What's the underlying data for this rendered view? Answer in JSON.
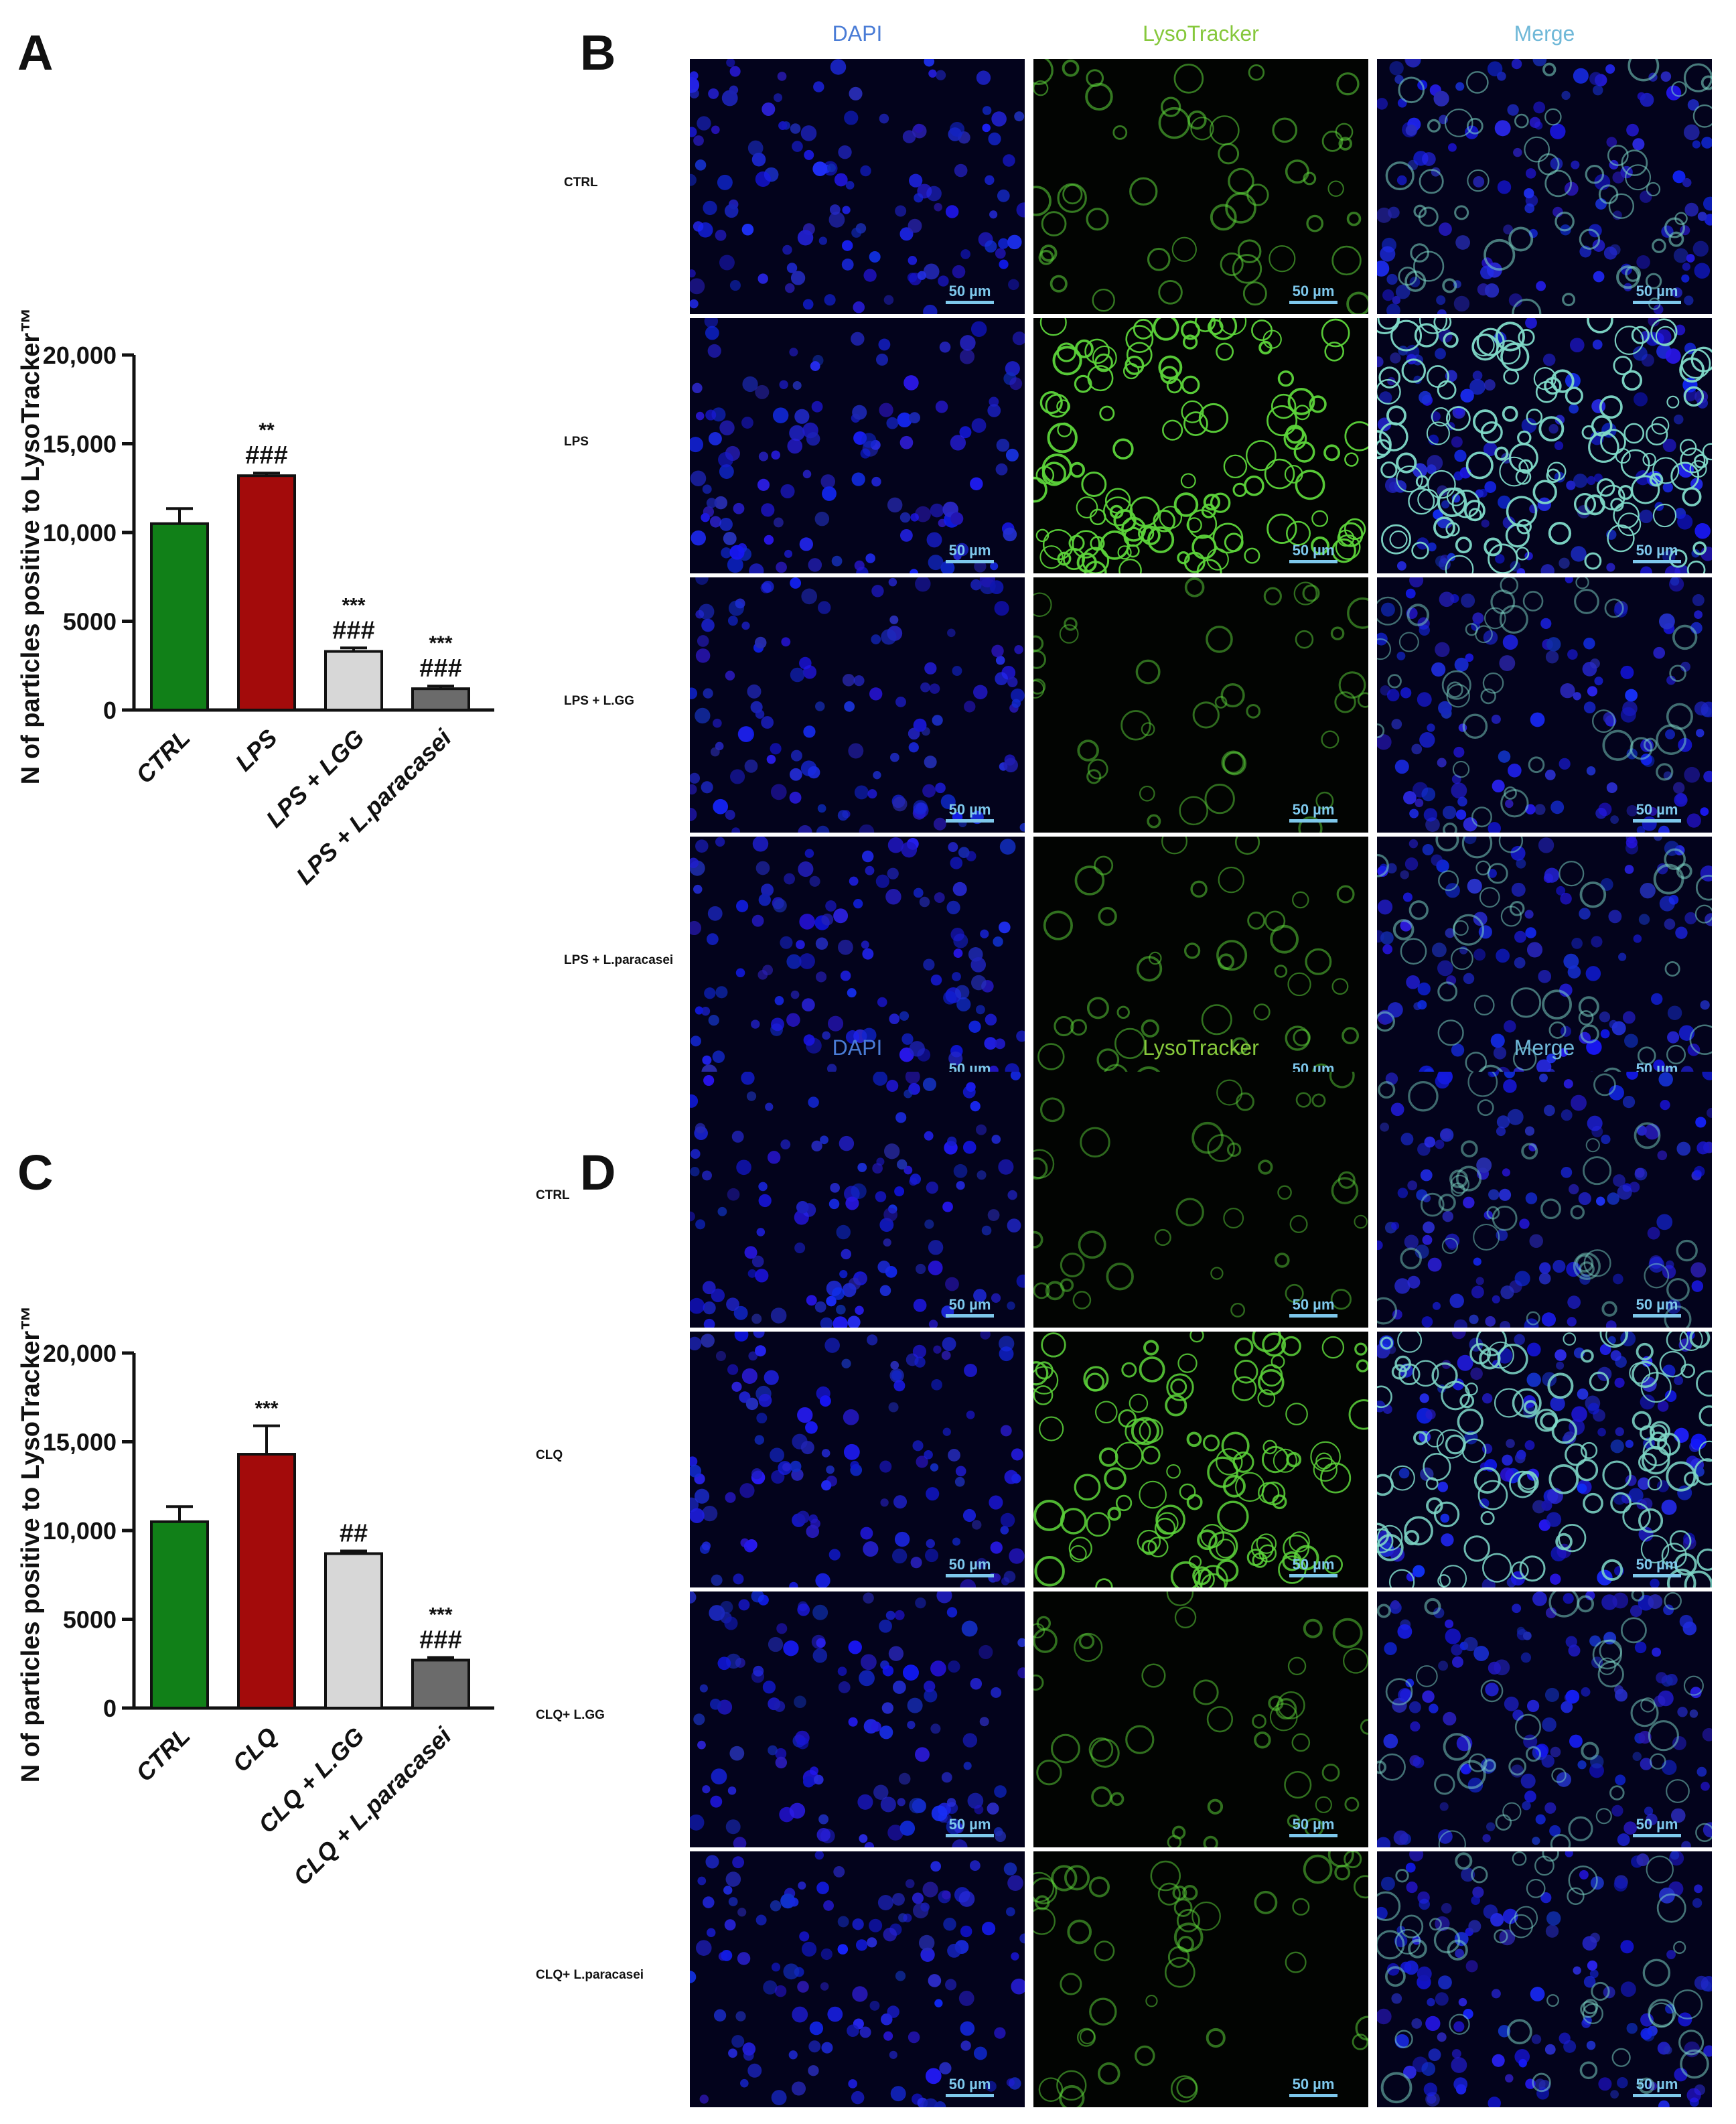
{
  "panels": {
    "a": "A",
    "b": "B",
    "c": "C",
    "d": "D"
  },
  "chart_data": [
    {
      "type": "bar",
      "ylabel": "N of particles positive to LysoTracker™",
      "ylim": [
        0,
        20000
      ],
      "yticks": [
        "0",
        "5000",
        "10,000",
        "15,000",
        "20,000"
      ],
      "categories": [
        "CTRL",
        "LPS",
        "LPS + LGG",
        "LPS + L.paracasei"
      ],
      "values": [
        10500,
        13200,
        3300,
        1200
      ],
      "errors": [
        850,
        150,
        200,
        150
      ],
      "annotations": [
        [
          "",
          ""
        ],
        [
          "**",
          "###"
        ],
        [
          "***",
          "###"
        ],
        [
          "***",
          "###"
        ]
      ],
      "colors": [
        "#118018",
        "#a30b0b",
        "#d7d7d7",
        "#6b6b6b"
      ]
    },
    {
      "type": "bar",
      "ylabel": "N of particles positive to LysoTracker™",
      "ylim": [
        0,
        20000
      ],
      "yticks": [
        "0",
        "5000",
        "10,000",
        "15,000",
        "20,000"
      ],
      "categories": [
        "CTRL",
        "CLQ",
        "CLQ + L.GG",
        "CLQ + L.paracasei"
      ],
      "values": [
        10500,
        14300,
        8700,
        2700
      ],
      "errors": [
        850,
        1600,
        150,
        150
      ],
      "annotations": [
        [
          "",
          ""
        ],
        [
          "***",
          ""
        ],
        [
          "",
          "##"
        ],
        [
          "***",
          "###"
        ]
      ],
      "colors": [
        "#118018",
        "#a30b0b",
        "#d7d7d7",
        "#6b6b6b"
      ]
    }
  ],
  "microscopy": {
    "columns": [
      "DAPI",
      "LysoTracker",
      "Merge"
    ],
    "column_colors": [
      "#4a7cd6",
      "#86c83c",
      "#6fb8d8"
    ],
    "panel_b_rows": [
      "CTRL",
      "LPS",
      "LPS + L.GG",
      "LPS + L.paracasei"
    ],
    "panel_d_rows": [
      "CTRL",
      "CLQ",
      "CLQ+ L.GG",
      "CLQ+ L.paracasei"
    ],
    "scale_bar": "50 µm",
    "green_intensity_b": [
      0.35,
      1.0,
      0.25,
      0.3
    ],
    "green_intensity_d": [
      0.22,
      0.85,
      0.28,
      0.3
    ]
  }
}
